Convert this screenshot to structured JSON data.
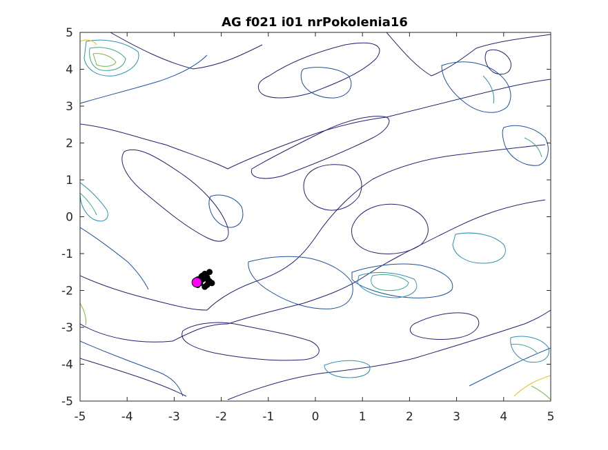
{
  "chart_data": {
    "type": "contour",
    "title": "AG f021 i01 nrPokolenia16",
    "xlabel": "",
    "ylabel": "",
    "xlim": [
      -5,
      5
    ],
    "ylim": [
      -5,
      5
    ],
    "xticks": [
      -5,
      -4,
      -3,
      -2,
      -1,
      0,
      1,
      2,
      3,
      4,
      5
    ],
    "yticks": [
      -5,
      -4,
      -3,
      -2,
      -1,
      0,
      1,
      2,
      3,
      4,
      5
    ],
    "tick_labels_x": [
      "-5",
      "-4",
      "-3",
      "-2",
      "-1",
      "0",
      "1",
      "2",
      "3",
      "4",
      "5"
    ],
    "tick_labels_y": [
      "-5",
      "-4",
      "-3",
      "-2",
      "-1",
      "0",
      "1",
      "2",
      "3",
      "4",
      "5"
    ],
    "grid": false,
    "legend": "none",
    "colors": {
      "level_1": "#1f1f6e",
      "level_2": "#1a4f9c",
      "level_3": "#2a8fb5",
      "level_4": "#3aa88a",
      "level_5": "#7ab84a",
      "level_6": "#e0c020",
      "population": "#000000",
      "best": "#ff00ff"
    },
    "population": [
      {
        "x": -2.35,
        "y": -1.55
      },
      {
        "x": -2.25,
        "y": -1.5
      },
      {
        "x": -2.4,
        "y": -1.6
      },
      {
        "x": -2.3,
        "y": -1.65
      },
      {
        "x": -2.5,
        "y": -1.7
      },
      {
        "x": -2.45,
        "y": -1.8
      },
      {
        "x": -2.3,
        "y": -1.85
      },
      {
        "x": -2.25,
        "y": -1.75
      },
      {
        "x": -2.4,
        "y": -1.7
      },
      {
        "x": -2.55,
        "y": -1.75
      },
      {
        "x": -2.35,
        "y": -1.9
      },
      {
        "x": -2.2,
        "y": -1.8
      },
      {
        "x": -2.42,
        "y": -1.62
      },
      {
        "x": -2.28,
        "y": -1.72
      },
      {
        "x": -2.5,
        "y": -1.85
      }
    ],
    "best_point": {
      "x": -2.52,
      "y": -1.78
    }
  }
}
